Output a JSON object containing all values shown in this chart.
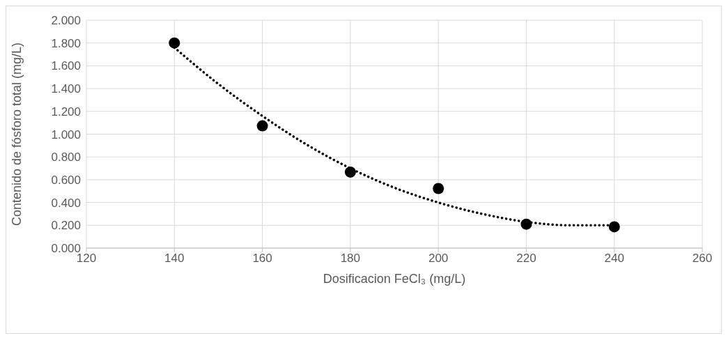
{
  "chart_data": {
    "type": "scatter",
    "xlabel": "Dosificacion FeCl₃ (mg/L)",
    "ylabel": "Contenido de fósforo total (mg/L)",
    "xlim": [
      120,
      260
    ],
    "xticks": [
      120,
      140,
      160,
      180,
      200,
      220,
      240,
      260
    ],
    "ylim": [
      0,
      2
    ],
    "yticks": [
      {
        "value": 0,
        "label": "0.000"
      },
      {
        "value": 0.2,
        "label": "0.200"
      },
      {
        "value": 0.4,
        "label": "0.400"
      },
      {
        "value": 0.6,
        "label": "0.600"
      },
      {
        "value": 0.8,
        "label": "0.800"
      },
      {
        "value": 1.0,
        "label": "1.000"
      },
      {
        "value": 1.2,
        "label": "1.200"
      },
      {
        "value": 1.4,
        "label": "1.400"
      },
      {
        "value": 1.6,
        "label": "1.600"
      },
      {
        "value": 1.8,
        "label": "1.800"
      },
      {
        "value": 2.0,
        "label": "2.000"
      }
    ],
    "grid": true,
    "series": [
      {
        "color": "#000000",
        "marker": "circle",
        "x": [
          140,
          160,
          180,
          200,
          220,
          240
        ],
        "values": [
          1.8,
          1.073,
          0.667,
          0.523,
          0.21,
          0.187
        ]
      },
      {
        "type": "line",
        "color": "#000000",
        "marker": "none",
        "line_style": "dotted",
        "x": [
          140,
          150,
          160,
          170,
          180,
          190,
          200,
          210,
          220,
          230,
          240
        ],
        "values": [
          1.76,
          1.44,
          1.16,
          0.91,
          0.7,
          0.53,
          0.4,
          0.3,
          0.23,
          0.2,
          0.2
        ]
      }
    ]
  }
}
